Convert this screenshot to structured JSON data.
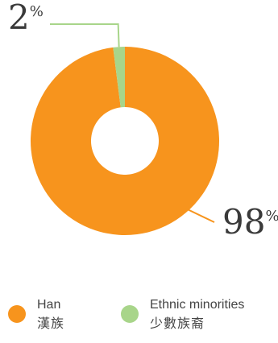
{
  "chart_data": {
    "type": "pie",
    "categories": [
      "Han 漢族",
      "Ethnic minorities 少數族裔"
    ],
    "values": [
      98,
      2
    ],
    "unit": "%",
    "donut": true,
    "colors": [
      "#f7941d",
      "#a8d58a"
    ],
    "labels": {
      "han_value": "98",
      "minority_value": "2",
      "percent_sign": "%"
    },
    "legend": {
      "placement": "bottom",
      "items": [
        {
          "label_en": "Han",
          "label_zh": "漢族",
          "color": "#f7941d"
        },
        {
          "label_en": "Ethnic minorities",
          "label_zh": "少數族裔",
          "color": "#a8d58a"
        }
      ]
    }
  }
}
